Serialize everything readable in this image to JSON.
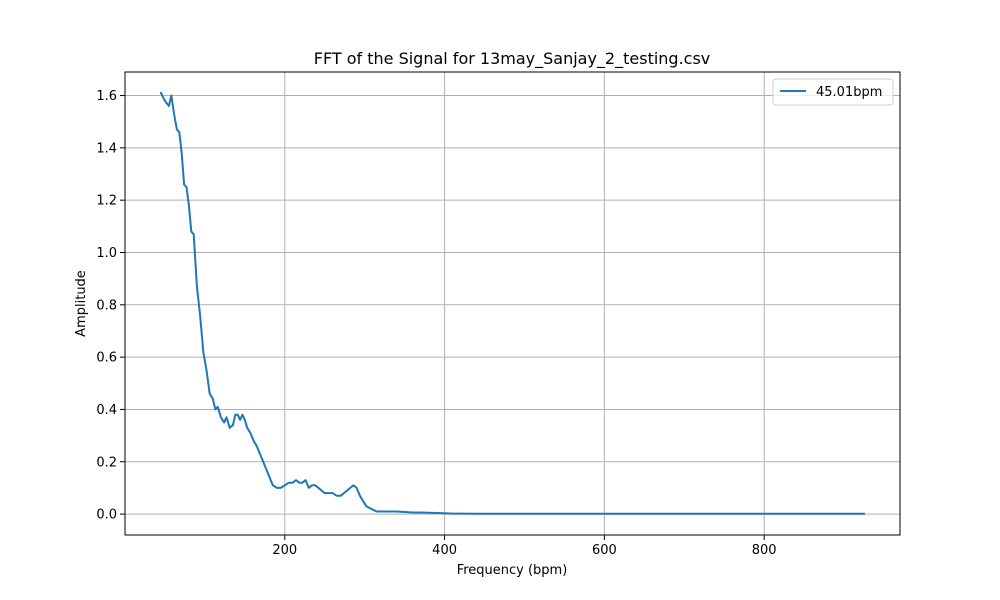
{
  "chart_data": {
    "type": "line",
    "title": "FFT of the Signal for 13may_Sanjay_2_testing.csv",
    "xlabel": "Frequency (bpm)",
    "ylabel": "Amplitude",
    "xlim": [
      0,
      970
    ],
    "ylim": [
      -0.08,
      1.69
    ],
    "xticks": [
      200,
      400,
      600,
      800
    ],
    "yticks": [
      0.0,
      0.2,
      0.4,
      0.6,
      0.8,
      1.0,
      1.2,
      1.4,
      1.6
    ],
    "xtick_labels": [
      "200",
      "400",
      "600",
      "800"
    ],
    "ytick_labels": [
      "0.0",
      "0.2",
      "0.4",
      "0.6",
      "0.8",
      "1.0",
      "1.2",
      "1.4",
      "1.6"
    ],
    "grid": true,
    "legend_position": "top-right",
    "series": [
      {
        "name": "45.01bpm",
        "color": "#1f77b4",
        "x": [
          45,
          50,
          55,
          58,
          62,
          65,
          68,
          71,
          74,
          77,
          80,
          83,
          86,
          90,
          94,
          98,
          102,
          106,
          110,
          113,
          116,
          120,
          124,
          127,
          131,
          135,
          138,
          141,
          144,
          147,
          150,
          153,
          157,
          161,
          165,
          169,
          173,
          177,
          181,
          185,
          190,
          195,
          200,
          205,
          210,
          214,
          218,
          222,
          226,
          230,
          234,
          238,
          242,
          246,
          250,
          255,
          260,
          265,
          270,
          274,
          278,
          282,
          286,
          290,
          294,
          298,
          302,
          308,
          315,
          322,
          330,
          340,
          350,
          360,
          370,
          380,
          390,
          400,
          410,
          420,
          440,
          470,
          500,
          550,
          600,
          650,
          700,
          750,
          800,
          850,
          900,
          925
        ],
        "y": [
          1.61,
          1.58,
          1.56,
          1.6,
          1.52,
          1.47,
          1.46,
          1.38,
          1.26,
          1.25,
          1.18,
          1.08,
          1.07,
          0.87,
          0.76,
          0.62,
          0.55,
          0.46,
          0.44,
          0.4,
          0.41,
          0.37,
          0.35,
          0.37,
          0.33,
          0.34,
          0.38,
          0.38,
          0.36,
          0.38,
          0.36,
          0.33,
          0.31,
          0.28,
          0.26,
          0.23,
          0.2,
          0.17,
          0.14,
          0.11,
          0.1,
          0.1,
          0.11,
          0.12,
          0.12,
          0.13,
          0.12,
          0.12,
          0.13,
          0.1,
          0.11,
          0.11,
          0.1,
          0.09,
          0.08,
          0.08,
          0.08,
          0.07,
          0.07,
          0.08,
          0.09,
          0.1,
          0.11,
          0.1,
          0.07,
          0.05,
          0.03,
          0.02,
          0.01,
          0.01,
          0.01,
          0.01,
          0.008,
          0.006,
          0.006,
          0.005,
          0.004,
          0.003,
          0.002,
          0.002,
          0.001,
          0.001,
          0.001,
          0.001,
          0.001,
          0.001,
          0.001,
          0.001,
          0.001,
          0.001,
          0.001,
          0.001
        ]
      }
    ]
  }
}
